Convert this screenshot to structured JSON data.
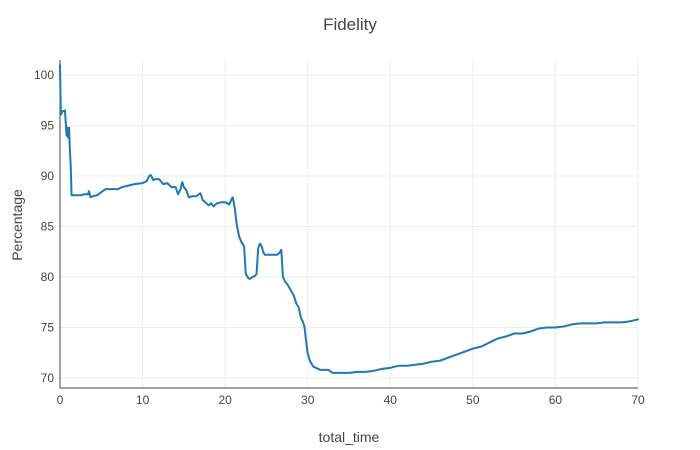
{
  "chart_data": {
    "type": "line",
    "title": "Fidelity",
    "xlabel": "total_time",
    "ylabel": "Percentage",
    "xlim": [
      0,
      70
    ],
    "ylim": [
      69,
      101.5
    ],
    "xticks": [
      0,
      10,
      20,
      30,
      40,
      50,
      60,
      70
    ],
    "yticks": [
      70,
      75,
      80,
      85,
      90,
      95,
      100
    ],
    "grid": true,
    "legend": "none",
    "series": [
      {
        "color": "#1f77b4",
        "x": [
          0,
          0.1,
          0.3,
          0.6,
          0.8,
          0.9,
          1.0,
          1.1,
          1.2,
          1.3,
          1.4,
          1.6,
          2.0,
          2.5,
          3.0,
          3.4,
          3.5,
          3.7,
          4.0,
          4.5,
          5.0,
          5.5,
          6.0,
          7.0,
          7.5,
          8.0,
          9.0,
          10.0,
          10.5,
          10.8,
          11.0,
          11.3,
          11.6,
          12.0,
          12.5,
          13.0,
          13.5,
          14.0,
          14.3,
          14.6,
          14.8,
          15.0,
          15.3,
          15.6,
          16.0,
          16.5,
          17.0,
          17.3,
          17.6,
          18.0,
          18.3,
          18.6,
          19.0,
          19.5,
          20.0,
          20.5,
          20.9,
          21.0,
          21.2,
          21.4,
          21.7,
          22.0,
          22.2,
          22.3,
          22.5,
          22.8,
          23.0,
          23.3,
          23.6,
          23.8,
          24.0,
          24.2,
          24.4,
          24.6,
          24.8,
          25.0,
          25.5,
          26.0,
          26.3,
          26.6,
          26.8,
          27.0,
          27.3,
          27.6,
          28.0,
          28.3,
          28.6,
          28.9,
          29.2,
          29.4,
          29.6,
          29.8,
          30.0,
          30.3,
          30.7,
          31.0,
          31.5,
          32.0,
          32.5,
          33.0,
          34.0,
          35.0,
          36.0,
          37.0,
          38.0,
          39.0,
          40.0,
          41.0,
          42.0,
          43.0,
          44.0,
          45.0,
          46.0,
          47.0,
          48.0,
          49.0,
          50.0,
          51.0,
          52.0,
          53.0,
          54.0,
          55.0,
          56.0,
          57.0,
          58.0,
          59.0,
          60.0,
          61.0,
          62.0,
          63.0,
          64.0,
          65.0,
          66.0,
          67.0,
          68.0,
          69.0,
          70.0
        ],
        "y": [
          101,
          96.1,
          96.4,
          96.5,
          94.0,
          94.8,
          93.8,
          94.8,
          92.5,
          91.0,
          88.1,
          88.1,
          88.1,
          88.1,
          88.2,
          88.2,
          88.5,
          87.9,
          88.0,
          88.1,
          88.4,
          88.7,
          88.7,
          88.7,
          88.9,
          89.0,
          89.2,
          89.3,
          89.5,
          90.0,
          90.1,
          89.6,
          89.7,
          89.7,
          89.2,
          89.3,
          88.9,
          88.9,
          88.2,
          88.7,
          89.4,
          88.9,
          88.6,
          87.9,
          88.0,
          88.0,
          88.3,
          87.6,
          87.4,
          87.1,
          87.3,
          87.0,
          87.3,
          87.4,
          87.4,
          87.2,
          87.9,
          87.6,
          86.6,
          85.2,
          84.0,
          83.4,
          83.2,
          83.0,
          80.3,
          79.9,
          79.8,
          80.0,
          80.1,
          80.3,
          82.8,
          83.3,
          83.1,
          82.5,
          82.2,
          82.2,
          82.2,
          82.2,
          82.2,
          82.4,
          82.7,
          80.0,
          79.5,
          79.2,
          78.6,
          78.2,
          77.4,
          77.0,
          75.9,
          75.6,
          75.1,
          73.7,
          72.4,
          71.6,
          71.1,
          71.0,
          70.8,
          70.8,
          70.8,
          70.5,
          70.5,
          70.5,
          70.6,
          70.6,
          70.7,
          70.9,
          71.0,
          71.2,
          71.2,
          71.3,
          71.4,
          71.6,
          71.7,
          72.0,
          72.3,
          72.6,
          72.9,
          73.1,
          73.5,
          73.9,
          74.1,
          74.4,
          74.4,
          74.6,
          74.9,
          75.0,
          75.0,
          75.1,
          75.3,
          75.4,
          75.4,
          75.4,
          75.5,
          75.5,
          75.5,
          75.6,
          75.8
        ]
      }
    ]
  }
}
